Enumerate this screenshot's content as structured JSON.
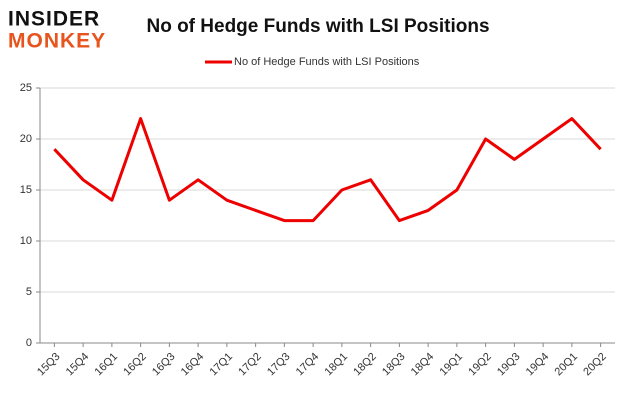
{
  "logo": {
    "top": "INSIDER",
    "bottom": "MONKEY"
  },
  "chart_data": {
    "type": "line",
    "title": "No of Hedge Funds with LSI Positions",
    "categories": [
      "15Q3",
      "15Q4",
      "16Q1",
      "16Q2",
      "16Q3",
      "16Q4",
      "17Q1",
      "17Q2",
      "17Q3",
      "17Q4",
      "18Q1",
      "18Q2",
      "18Q3",
      "18Q4",
      "19Q1",
      "19Q2",
      "19Q3",
      "19Q4",
      "20Q1",
      "20Q2"
    ],
    "series": [
      {
        "name": "No of Hedge Funds with LSI Positions",
        "color": "#ee0000",
        "values": [
          19,
          16,
          14,
          22,
          14,
          16,
          14,
          13,
          12,
          12,
          15,
          16,
          12,
          13,
          15,
          20,
          18,
          20,
          22,
          19
        ]
      }
    ],
    "ylim": [
      0,
      25
    ],
    "yticks": [
      0,
      5,
      10,
      15,
      20,
      25
    ],
    "grid": true,
    "legend": "top"
  }
}
